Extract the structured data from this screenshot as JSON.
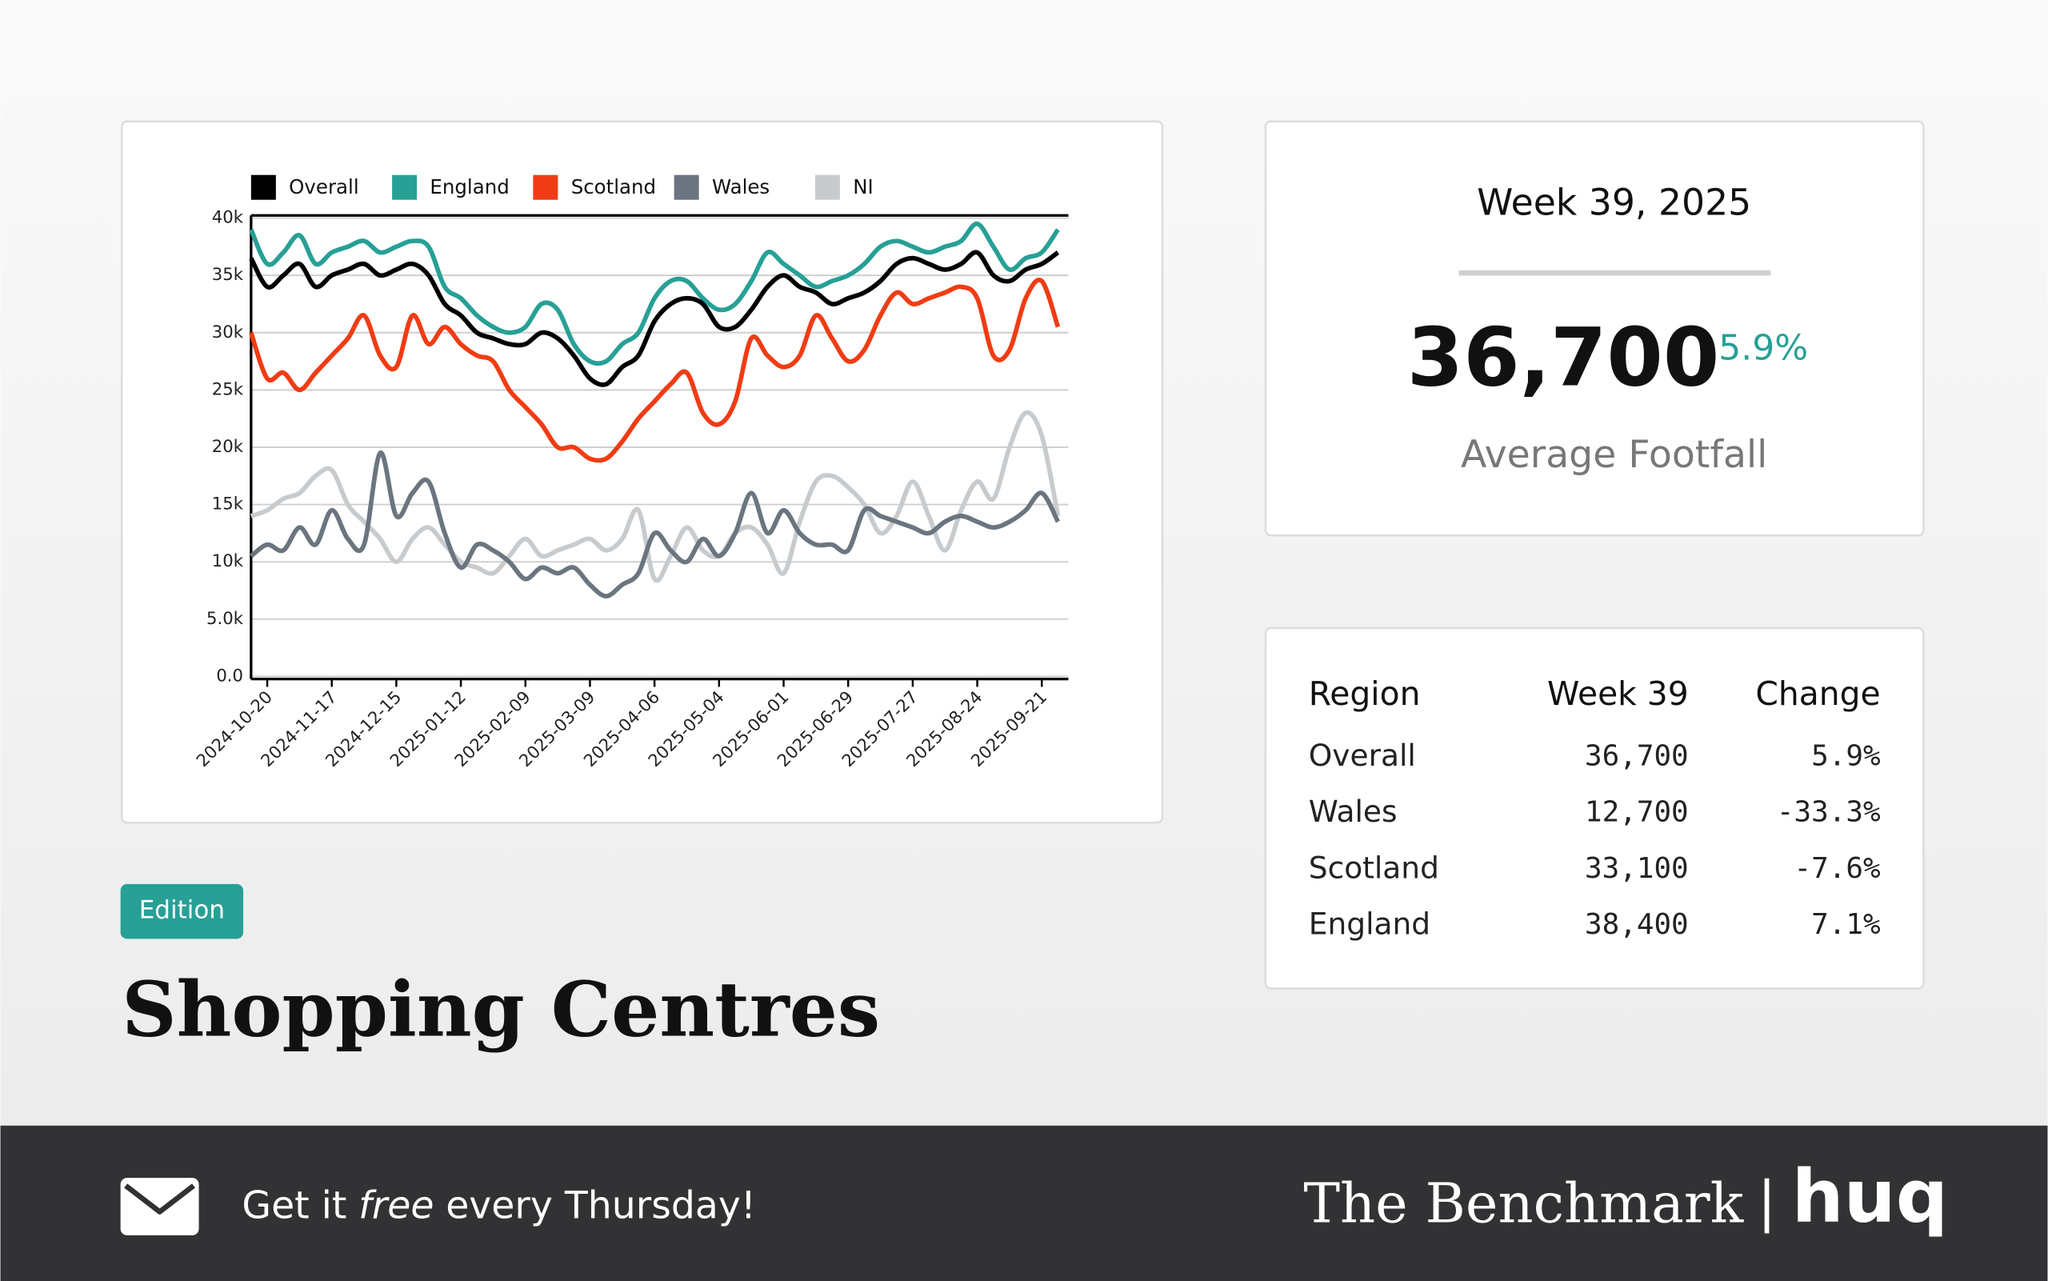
{
  "chart_data": {
    "type": "line",
    "x": [
      "2024-10-13",
      "2024-10-20",
      "2024-10-27",
      "2024-11-03",
      "2024-11-10",
      "2024-11-17",
      "2024-11-24",
      "2024-12-01",
      "2024-12-08",
      "2024-12-15",
      "2024-12-22",
      "2024-12-29",
      "2025-01-05",
      "2025-01-12",
      "2025-01-19",
      "2025-01-26",
      "2025-02-02",
      "2025-02-09",
      "2025-02-16",
      "2025-02-23",
      "2025-03-02",
      "2025-03-09",
      "2025-03-16",
      "2025-03-23",
      "2025-03-30",
      "2025-04-06",
      "2025-04-13",
      "2025-04-20",
      "2025-04-27",
      "2025-05-04",
      "2025-05-11",
      "2025-05-18",
      "2025-05-25",
      "2025-06-01",
      "2025-06-08",
      "2025-06-15",
      "2025-06-22",
      "2025-06-29",
      "2025-07-06",
      "2025-07-13",
      "2025-07-20",
      "2025-07-27",
      "2025-08-03",
      "2025-08-10",
      "2025-08-17",
      "2025-08-24",
      "2025-08-31",
      "2025-09-07",
      "2025-09-14",
      "2025-09-21",
      "2025-09-28"
    ],
    "series": [
      {
        "name": "Overall",
        "color": "#000000",
        "values": [
          36500,
          34000,
          35000,
          36000,
          34000,
          35000,
          35500,
          36000,
          35000,
          35500,
          36000,
          35000,
          32500,
          31500,
          30000,
          29500,
          29000,
          29000,
          30000,
          29500,
          28000,
          26000,
          25500,
          27000,
          28000,
          31000,
          32500,
          33000,
          32500,
          30500,
          30500,
          32000,
          34000,
          35000,
          34000,
          33500,
          32500,
          33000,
          33500,
          34500,
          36000,
          36500,
          36000,
          35500,
          36000,
          37000,
          35000,
          34500,
          35500,
          36000,
          37000
        ]
      },
      {
        "name": "England",
        "color": "#27a096",
        "values": [
          39000,
          36000,
          37000,
          38500,
          36000,
          37000,
          37500,
          38000,
          37000,
          37500,
          38000,
          37500,
          34000,
          33000,
          31500,
          30500,
          30000,
          30500,
          32500,
          32000,
          29000,
          27500,
          27500,
          29000,
          30000,
          33000,
          34500,
          34500,
          33000,
          32000,
          32500,
          34500,
          37000,
          36000,
          35000,
          34000,
          34500,
          35000,
          36000,
          37500,
          38000,
          37500,
          37000,
          37500,
          38000,
          39500,
          37500,
          35500,
          36500,
          37000,
          39000
        ]
      },
      {
        "name": "Scotland",
        "color": "#f03c14",
        "values": [
          30000,
          26000,
          26500,
          25000,
          26500,
          28000,
          29500,
          31500,
          28000,
          27000,
          31500,
          29000,
          30500,
          29000,
          28000,
          27500,
          25000,
          23500,
          22000,
          20000,
          20000,
          19000,
          19000,
          20500,
          22500,
          24000,
          25500,
          26500,
          23000,
          22000,
          24000,
          29500,
          28000,
          27000,
          28000,
          31500,
          29500,
          27500,
          28500,
          31500,
          33500,
          32500,
          33000,
          33500,
          34000,
          33000,
          28000,
          28500,
          33000,
          34500,
          30500
        ]
      },
      {
        "name": "Wales",
        "color": "#6b7580",
        "values": [
          10500,
          11500,
          11000,
          13000,
          11500,
          14500,
          12000,
          11500,
          19500,
          14000,
          16000,
          17000,
          12500,
          9500,
          11500,
          11000,
          10000,
          8500,
          9500,
          9000,
          9500,
          8000,
          7000,
          8000,
          9000,
          12500,
          11000,
          10000,
          12000,
          10500,
          12500,
          16000,
          12500,
          14500,
          12500,
          11500,
          11500,
          11000,
          14500,
          14000,
          13500,
          13000,
          12500,
          13500,
          14000,
          13500,
          13000,
          13500,
          14500,
          16000,
          13500
        ]
      },
      {
        "name": "NI",
        "color": "#c8cbcd",
        "values": [
          14000,
          14500,
          15500,
          16000,
          17500,
          18000,
          15000,
          13500,
          12000,
          10000,
          12000,
          13000,
          11500,
          10000,
          9500,
          9000,
          10500,
          12000,
          10500,
          11000,
          11500,
          12000,
          11000,
          12000,
          14500,
          8500,
          10500,
          13000,
          11000,
          10500,
          12500,
          13000,
          11500,
          9000,
          13500,
          17000,
          17500,
          16500,
          15000,
          12500,
          14000,
          17000,
          14000,
          11000,
          14500,
          17000,
          15500,
          20000,
          23000,
          21000,
          14000
        ]
      }
    ],
    "xlim": [
      "2024-10-13",
      "2025-09-28"
    ],
    "xticks": [
      "2024-10-20",
      "2024-11-17",
      "2024-12-15",
      "2025-01-12",
      "2025-02-09",
      "2025-03-09",
      "2025-04-06",
      "2025-05-04",
      "2025-06-01",
      "2025-06-29",
      "2025-07-27",
      "2025-08-24",
      "2025-09-21"
    ],
    "ylim": [
      0,
      40000
    ],
    "yticks": [
      {
        "value": 0,
        "label": "0.0"
      },
      {
        "value": 5000,
        "label": "5.0k"
      },
      {
        "value": 10000,
        "label": "10k"
      },
      {
        "value": 15000,
        "label": "15k"
      },
      {
        "value": 20000,
        "label": "20k"
      },
      {
        "value": 25000,
        "label": "25k"
      },
      {
        "value": 30000,
        "label": "30k"
      },
      {
        "value": 35000,
        "label": "35k"
      },
      {
        "value": 40000,
        "label": "40k"
      }
    ],
    "grid": true,
    "legend": "top"
  },
  "stat": {
    "period": "Week 39, 2025",
    "value": "36,700",
    "change": "5.9%",
    "label": "Average Footfall"
  },
  "table": {
    "headers": [
      "Region",
      "Week 39",
      "Change"
    ],
    "rows": [
      [
        "Overall",
        "36,700",
        "5.9%"
      ],
      [
        "Wales",
        "12,700",
        "-33.3%"
      ],
      [
        "Scotland",
        "33,100",
        "-7.6%"
      ],
      [
        "England",
        "38,400",
        "7.1%"
      ]
    ]
  },
  "edition": "Edition",
  "title": "Shopping Centres",
  "footer": {
    "tagline": [
      "Get it",
      "free",
      "every Thursday!"
    ],
    "brand": "The Benchmark",
    "separator": "|",
    "logo": "huq"
  }
}
